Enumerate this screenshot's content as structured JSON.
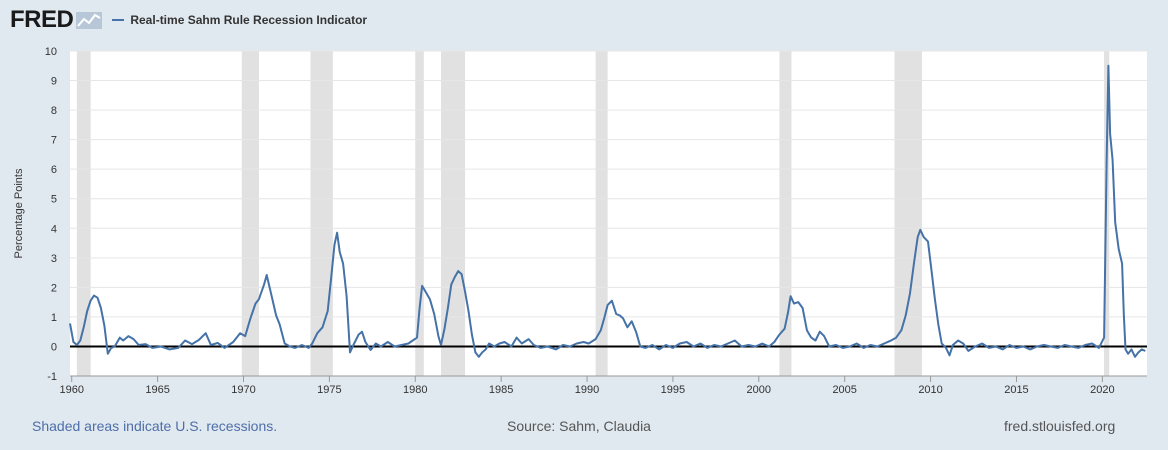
{
  "header": {
    "logo_text": "FRED",
    "logo_icon": "chart-line-icon",
    "legend_label": "Real-time Sahm Rule Recession Indicator"
  },
  "footer": {
    "recession_note": "Shaded areas indicate U.S. recessions.",
    "source": "Source: Sahm, Claudia",
    "site": "fred.stlouisfed.org"
  },
  "colors": {
    "series": "#4572a7",
    "recession_shade": "#e1e1e1",
    "background": "#e1e9f0",
    "zero_line": "#000000"
  },
  "chart_data": {
    "type": "line",
    "title": "",
    "xlabel": "",
    "ylabel": "Percentage Points",
    "xlim": [
      1959.9,
      2022.6
    ],
    "ylim": [
      -1,
      10
    ],
    "yticks": [
      -1,
      0,
      1,
      2,
      3,
      4,
      5,
      6,
      7,
      8,
      9,
      10
    ],
    "xticks": [
      1960,
      1965,
      1970,
      1975,
      1980,
      1985,
      1990,
      1995,
      2000,
      2005,
      2010,
      2015,
      2020
    ],
    "grid": "horizontal",
    "legend": "top-left",
    "zero_line": true,
    "recessions": [
      [
        1960.3,
        1961.1
      ],
      [
        1969.9,
        1970.9
      ],
      [
        1973.9,
        1975.2
      ],
      [
        1980.0,
        1980.5
      ],
      [
        1981.5,
        1982.9
      ],
      [
        1990.5,
        1991.2
      ],
      [
        2001.2,
        2001.9
      ],
      [
        2007.9,
        2009.5
      ],
      [
        2020.1,
        2020.4
      ]
    ],
    "series": [
      {
        "name": "Real-time Sahm Rule Recession Indicator",
        "points": [
          [
            1959.9,
            0.78
          ],
          [
            1960.1,
            0.15
          ],
          [
            1960.3,
            0.05
          ],
          [
            1960.5,
            0.2
          ],
          [
            1960.7,
            0.65
          ],
          [
            1960.9,
            1.2
          ],
          [
            1961.1,
            1.55
          ],
          [
            1961.3,
            1.72
          ],
          [
            1961.5,
            1.65
          ],
          [
            1961.7,
            1.3
          ],
          [
            1961.9,
            0.7
          ],
          [
            1962.1,
            -0.25
          ],
          [
            1962.3,
            -0.05
          ],
          [
            1962.5,
            0.0
          ],
          [
            1962.8,
            0.3
          ],
          [
            1963.0,
            0.2
          ],
          [
            1963.3,
            0.35
          ],
          [
            1963.6,
            0.25
          ],
          [
            1963.9,
            0.05
          ],
          [
            1964.3,
            0.08
          ],
          [
            1964.7,
            -0.05
          ],
          [
            1965.2,
            0.0
          ],
          [
            1965.7,
            -0.1
          ],
          [
            1966.2,
            -0.05
          ],
          [
            1966.6,
            0.2
          ],
          [
            1967.0,
            0.08
          ],
          [
            1967.4,
            0.22
          ],
          [
            1967.8,
            0.45
          ],
          [
            1968.1,
            0.05
          ],
          [
            1968.5,
            0.12
          ],
          [
            1968.9,
            -0.05
          ],
          [
            1969.4,
            0.15
          ],
          [
            1969.8,
            0.45
          ],
          [
            1970.1,
            0.35
          ],
          [
            1970.4,
            0.95
          ],
          [
            1970.7,
            1.45
          ],
          [
            1970.9,
            1.6
          ],
          [
            1971.2,
            2.1
          ],
          [
            1971.35,
            2.42
          ],
          [
            1971.6,
            1.8
          ],
          [
            1971.9,
            1.05
          ],
          [
            1972.1,
            0.75
          ],
          [
            1972.4,
            0.1
          ],
          [
            1972.7,
            0.0
          ],
          [
            1973.0,
            -0.05
          ],
          [
            1973.4,
            0.05
          ],
          [
            1973.8,
            -0.05
          ],
          [
            1974.0,
            0.1
          ],
          [
            1974.3,
            0.45
          ],
          [
            1974.6,
            0.65
          ],
          [
            1974.9,
            1.2
          ],
          [
            1975.1,
            2.3
          ],
          [
            1975.3,
            3.45
          ],
          [
            1975.45,
            3.85
          ],
          [
            1975.6,
            3.2
          ],
          [
            1975.8,
            2.8
          ],
          [
            1976.0,
            1.7
          ],
          [
            1976.2,
            -0.2
          ],
          [
            1976.4,
            0.05
          ],
          [
            1976.7,
            0.4
          ],
          [
            1976.9,
            0.5
          ],
          [
            1977.1,
            0.15
          ],
          [
            1977.4,
            -0.12
          ],
          [
            1977.7,
            0.1
          ],
          [
            1978.0,
            0.0
          ],
          [
            1978.4,
            0.15
          ],
          [
            1978.8,
            0.0
          ],
          [
            1979.2,
            0.05
          ],
          [
            1979.6,
            0.1
          ],
          [
            1979.9,
            0.22
          ],
          [
            1980.1,
            0.3
          ],
          [
            1980.25,
            1.3
          ],
          [
            1980.4,
            2.05
          ],
          [
            1980.6,
            1.85
          ],
          [
            1980.85,
            1.6
          ],
          [
            1981.1,
            1.1
          ],
          [
            1981.35,
            0.35
          ],
          [
            1981.5,
            0.05
          ],
          [
            1981.7,
            0.6
          ],
          [
            1981.9,
            1.3
          ],
          [
            1982.1,
            2.1
          ],
          [
            1982.3,
            2.35
          ],
          [
            1982.5,
            2.55
          ],
          [
            1982.7,
            2.45
          ],
          [
            1982.9,
            1.85
          ],
          [
            1983.1,
            1.2
          ],
          [
            1983.3,
            0.4
          ],
          [
            1983.5,
            -0.2
          ],
          [
            1983.7,
            -0.35
          ],
          [
            1983.9,
            -0.2
          ],
          [
            1984.1,
            -0.1
          ],
          [
            1984.3,
            0.1
          ],
          [
            1984.6,
            0.0
          ],
          [
            1984.9,
            0.1
          ],
          [
            1985.2,
            0.15
          ],
          [
            1985.6,
            0.0
          ],
          [
            1985.9,
            0.3
          ],
          [
            1986.2,
            0.1
          ],
          [
            1986.6,
            0.25
          ],
          [
            1986.9,
            0.05
          ],
          [
            1987.3,
            -0.05
          ],
          [
            1987.7,
            0.0
          ],
          [
            1988.2,
            -0.1
          ],
          [
            1988.6,
            0.05
          ],
          [
            1989.0,
            0.0
          ],
          [
            1989.4,
            0.1
          ],
          [
            1989.8,
            0.15
          ],
          [
            1990.1,
            0.1
          ],
          [
            1990.5,
            0.25
          ],
          [
            1990.8,
            0.55
          ],
          [
            1991.0,
            0.95
          ],
          [
            1991.2,
            1.4
          ],
          [
            1991.45,
            1.55
          ],
          [
            1991.7,
            1.1
          ],
          [
            1991.9,
            1.05
          ],
          [
            1992.1,
            0.95
          ],
          [
            1992.35,
            0.65
          ],
          [
            1992.6,
            0.85
          ],
          [
            1992.85,
            0.5
          ],
          [
            1993.1,
            0.0
          ],
          [
            1993.4,
            -0.05
          ],
          [
            1993.8,
            0.05
          ],
          [
            1994.2,
            -0.1
          ],
          [
            1994.6,
            0.05
          ],
          [
            1995.0,
            -0.05
          ],
          [
            1995.4,
            0.1
          ],
          [
            1995.8,
            0.15
          ],
          [
            1996.2,
            0.0
          ],
          [
            1996.6,
            0.1
          ],
          [
            1997.0,
            -0.05
          ],
          [
            1997.4,
            0.05
          ],
          [
            1997.8,
            0.0
          ],
          [
            1998.2,
            0.1
          ],
          [
            1998.6,
            0.2
          ],
          [
            1999.0,
            0.0
          ],
          [
            1999.4,
            0.05
          ],
          [
            1999.8,
            0.0
          ],
          [
            2000.2,
            0.1
          ],
          [
            2000.6,
            0.0
          ],
          [
            2000.9,
            0.15
          ],
          [
            2001.2,
            0.4
          ],
          [
            2001.5,
            0.6
          ],
          [
            2001.7,
            1.15
          ],
          [
            2001.85,
            1.7
          ],
          [
            2002.05,
            1.45
          ],
          [
            2002.3,
            1.5
          ],
          [
            2002.55,
            1.3
          ],
          [
            2002.8,
            0.55
          ],
          [
            2003.05,
            0.3
          ],
          [
            2003.3,
            0.2
          ],
          [
            2003.55,
            0.5
          ],
          [
            2003.8,
            0.35
          ],
          [
            2004.1,
            0.0
          ],
          [
            2004.5,
            0.05
          ],
          [
            2004.9,
            -0.05
          ],
          [
            2005.3,
            0.0
          ],
          [
            2005.7,
            0.1
          ],
          [
            2006.1,
            -0.05
          ],
          [
            2006.5,
            0.05
          ],
          [
            2006.9,
            0.0
          ],
          [
            2007.3,
            0.1
          ],
          [
            2007.7,
            0.2
          ],
          [
            2008.0,
            0.3
          ],
          [
            2008.3,
            0.55
          ],
          [
            2008.55,
            1.05
          ],
          [
            2008.8,
            1.8
          ],
          [
            2009.05,
            2.9
          ],
          [
            2009.25,
            3.7
          ],
          [
            2009.4,
            3.95
          ],
          [
            2009.6,
            3.7
          ],
          [
            2009.85,
            3.55
          ],
          [
            2010.05,
            2.6
          ],
          [
            2010.25,
            1.6
          ],
          [
            2010.45,
            0.75
          ],
          [
            2010.65,
            0.1
          ],
          [
            2010.9,
            -0.05
          ],
          [
            2011.1,
            -0.3
          ],
          [
            2011.3,
            0.05
          ],
          [
            2011.6,
            0.2
          ],
          [
            2011.9,
            0.1
          ],
          [
            2012.2,
            -0.15
          ],
          [
            2012.6,
            0.0
          ],
          [
            2013.0,
            0.1
          ],
          [
            2013.4,
            -0.05
          ],
          [
            2013.8,
            0.0
          ],
          [
            2014.2,
            -0.1
          ],
          [
            2014.6,
            0.05
          ],
          [
            2015.0,
            -0.05
          ],
          [
            2015.4,
            0.0
          ],
          [
            2015.8,
            -0.1
          ],
          [
            2016.2,
            0.0
          ],
          [
            2016.6,
            0.05
          ],
          [
            2017.0,
            0.0
          ],
          [
            2017.4,
            -0.05
          ],
          [
            2017.8,
            0.05
          ],
          [
            2018.2,
            0.0
          ],
          [
            2018.6,
            -0.05
          ],
          [
            2019.0,
            0.05
          ],
          [
            2019.4,
            0.1
          ],
          [
            2019.8,
            -0.05
          ],
          [
            2020.1,
            0.3
          ],
          [
            2020.25,
            6.2
          ],
          [
            2020.35,
            9.5
          ],
          [
            2020.45,
            7.2
          ],
          [
            2020.6,
            6.3
          ],
          [
            2020.75,
            4.2
          ],
          [
            2020.95,
            3.3
          ],
          [
            2021.15,
            2.8
          ],
          [
            2021.25,
            1.1
          ],
          [
            2021.35,
            -0.1
          ],
          [
            2021.5,
            -0.25
          ],
          [
            2021.7,
            -0.1
          ],
          [
            2021.9,
            -0.35
          ],
          [
            2022.1,
            -0.2
          ],
          [
            2022.3,
            -0.1
          ],
          [
            2022.5,
            -0.15
          ]
        ]
      }
    ]
  }
}
